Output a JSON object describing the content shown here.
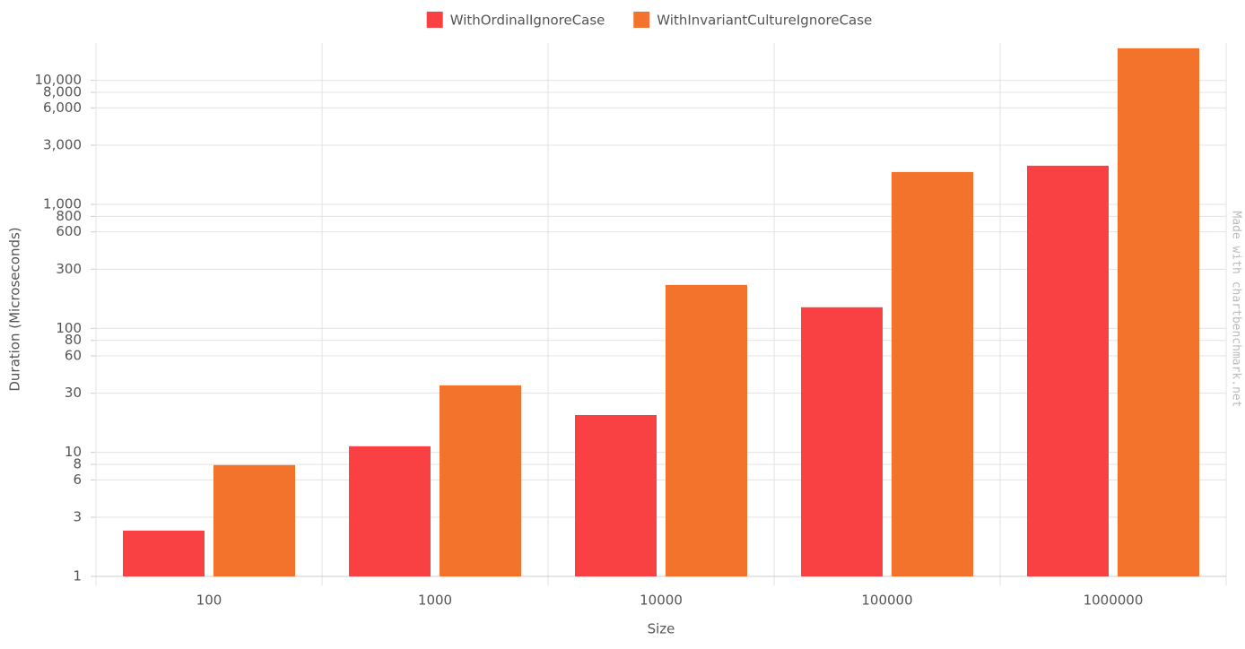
{
  "chart_data": {
    "type": "bar",
    "log_scale": true,
    "grid": true,
    "legend_position": "top",
    "x_label": "Size",
    "y_label": "Duration (Microseconds)",
    "watermark": "Made with chartbenchmark.net",
    "categories": [
      "100",
      "1000",
      "10000",
      "100000",
      "1000000"
    ],
    "series": [
      {
        "name": "WithOrdinalIgnoreCase",
        "color": "#f94144",
        "values": [
          2.34,
          11.2,
          20.0,
          148,
          2050
        ]
      },
      {
        "name": "WithInvariantCultureIgnoreCase",
        "color": "#f3722c",
        "values": [
          7.9,
          34.7,
          224,
          1824,
          18150
        ]
      }
    ],
    "ylim": [
      1,
      20000
    ],
    "yticks": [
      1,
      3,
      6,
      8,
      10,
      30,
      60,
      80,
      100,
      300,
      600,
      800,
      {
        "value": 1000,
        "label": "1,000"
      },
      {
        "value": 3000,
        "label": "3,000"
      },
      {
        "value": 6000,
        "label": "6,000"
      },
      {
        "value": 8000,
        "label": "8,000"
      },
      {
        "value": 10000,
        "label": "10,000"
      }
    ]
  }
}
